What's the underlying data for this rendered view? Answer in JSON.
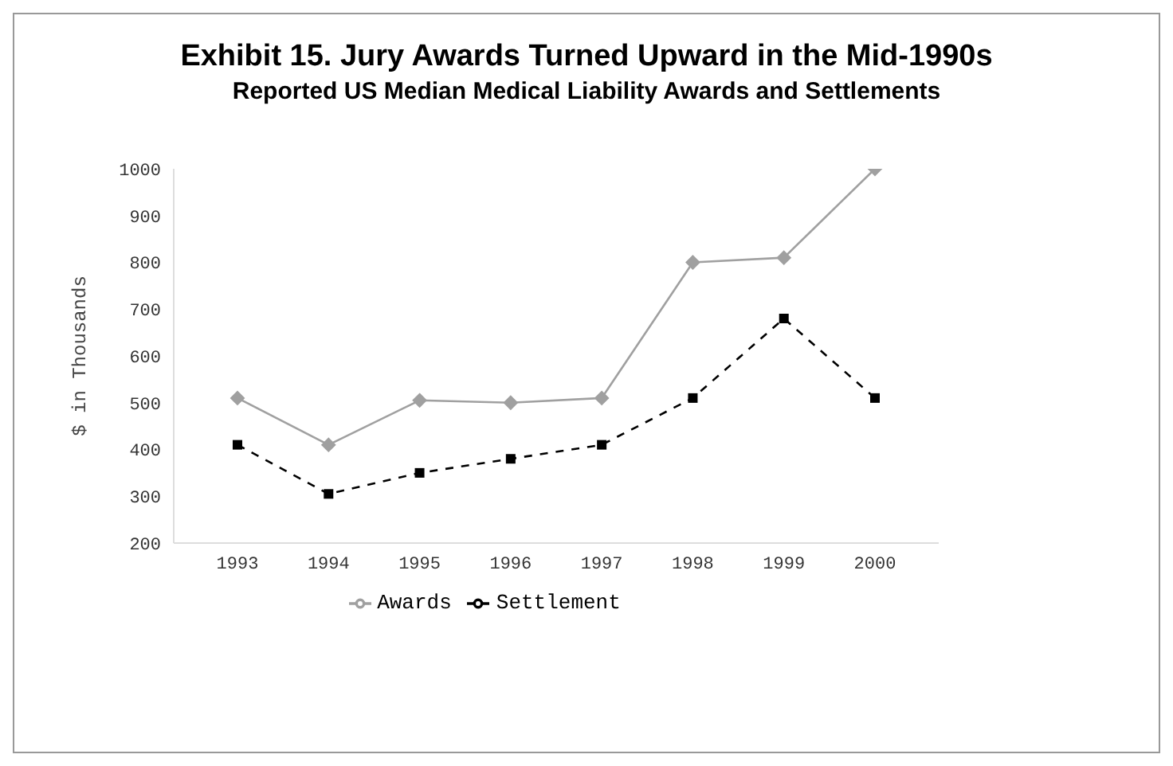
{
  "chart_data": {
    "type": "line",
    "title": "Exhibit 15. Jury Awards Turned Upward in the Mid-1990s",
    "subtitle": "Reported US Median Medical Liability Awards and Settlements",
    "ylabel": "$ in Thousands",
    "categories": [
      "1993",
      "1994",
      "1995",
      "1996",
      "1997",
      "1998",
      "1999",
      "2000"
    ],
    "series": [
      {
        "name": "Awards",
        "color": "#a0a0a0",
        "marker": "diamond",
        "line_style": "solid",
        "values": [
          510,
          410,
          505,
          500,
          510,
          800,
          810,
          1000
        ]
      },
      {
        "name": "Settlement",
        "color": "#000000",
        "marker": "square",
        "line_style": "dashed",
        "values": [
          410,
          305,
          350,
          380,
          410,
          510,
          680,
          510
        ]
      }
    ],
    "ylim": [
      200,
      1000
    ],
    "yticks": [
      200,
      300,
      400,
      500,
      600,
      700,
      800,
      900,
      1000
    ],
    "grid": false,
    "legend": "bottom"
  }
}
